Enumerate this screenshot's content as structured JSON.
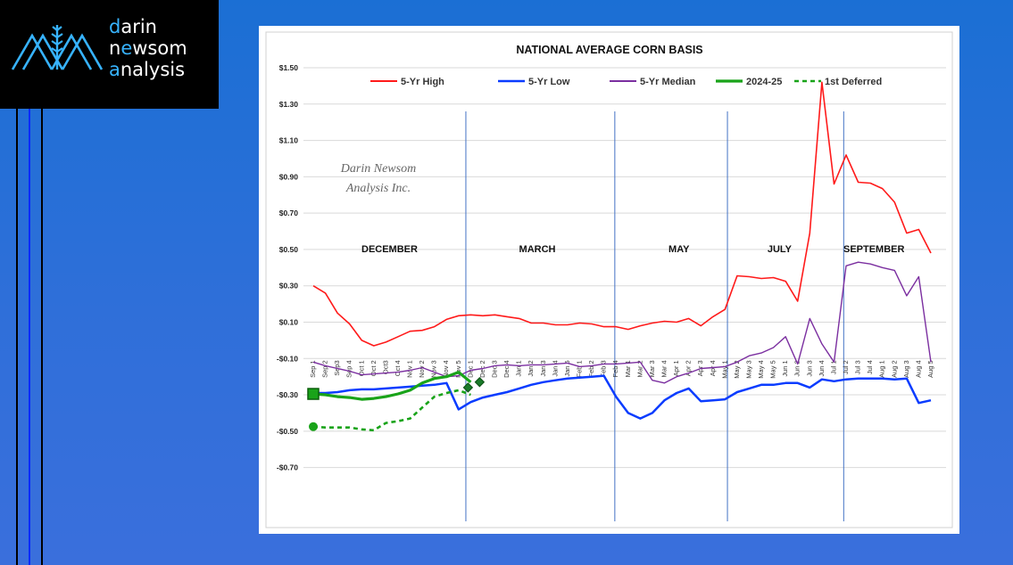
{
  "brand": {
    "line1_accent": "d",
    "line1_rest": "arin",
    "line2_pre": "n",
    "line2_accent": "e",
    "line2_mid": "w",
    "line2_rest": "som",
    "line3_accent": "a",
    "line3_rest": "nalysis",
    "accent_color": "#37b3ff"
  },
  "chart_data": {
    "type": "line",
    "title": "NATIONAL AVERAGE CORN BASIS",
    "watermark": [
      "Darin Newsom",
      "Analysis Inc."
    ],
    "ylim": [
      -0.8,
      1.5
    ],
    "yticks": [
      1.5,
      1.3,
      1.1,
      0.9,
      0.7,
      0.5,
      0.3,
      0.1,
      -0.1,
      -0.3,
      -0.5,
      -0.7
    ],
    "ytick_labels": [
      "$1.50",
      "$1.30",
      "$1.10",
      "$0.90",
      "$0.70",
      "$0.50",
      "$0.30",
      "$0.10",
      "-$0.10",
      "-$0.30",
      "-$0.50",
      "-$0.70"
    ],
    "grid": true,
    "legend_position": "top",
    "x": [
      "Sep 1",
      "Sep 2",
      "Sep3",
      "Sep 4",
      "Oct 1",
      "Oct 2",
      "Oct3",
      "Oct 4",
      "Nov 1",
      "Nov 2",
      "Nov 3",
      "Nov 4",
      "Nov 5",
      "Dec 1",
      "Dec 2",
      "Dec 3",
      "Dec 4",
      "Jan 1",
      "Jan 2",
      "Jan 3",
      "Jan 4",
      "Jan 5",
      "Feb 1",
      "Feb 2",
      "Feb 3",
      "Feb 4",
      "Mar 1",
      "Mar 2",
      "Mar 3",
      "Mar 4",
      "Apr 1",
      "Apr 2",
      "Apr 3",
      "Apr 4",
      "May 1",
      "May 2",
      "May 3",
      "May 4",
      "May 5",
      "Jun 1",
      "Jun 2",
      "Jun 3",
      "Jun 4",
      "Jul 1",
      "Jul 2",
      "Jul 3",
      "Jul 4",
      "Aug 1",
      "Aug 2",
      "Aug 3",
      "Aug 4",
      "Aug 5"
    ],
    "month_labels": [
      {
        "text": "DECEMBER",
        "at_index": 6.3
      },
      {
        "text": "MARCH",
        "at_index": 18.5
      },
      {
        "text": "MAY",
        "at_index": 30.2
      },
      {
        "text": "JULY",
        "at_index": 38.5
      },
      {
        "text": "SEPTEMBER",
        "at_index": 46.3
      }
    ],
    "contract_dividers_at_index": [
      12.6,
      24.9,
      34.2,
      43.8
    ],
    "series": [
      {
        "name": "5-Yr High",
        "color": "#ff1a1a",
        "width": 1.6,
        "dash": "",
        "values": [
          0.3,
          0.26,
          0.15,
          0.09,
          0.0,
          -0.03,
          -0.01,
          0.02,
          0.05,
          0.055,
          0.075,
          0.115,
          0.135,
          0.14,
          0.135,
          0.14,
          0.13,
          0.12,
          0.095,
          0.095,
          0.085,
          0.085,
          0.095,
          0.09,
          0.075,
          0.075,
          0.06,
          0.08,
          0.095,
          0.105,
          0.1,
          0.12,
          0.08,
          0.13,
          0.17,
          0.355,
          0.35,
          0.34,
          0.345,
          0.325,
          0.215,
          0.59,
          1.42,
          0.86,
          1.02,
          0.87,
          0.865,
          0.835,
          0.76,
          0.59,
          0.61,
          0.48
        ]
      },
      {
        "name": "5-Yr Low",
        "color": "#0a3cff",
        "width": 2.5,
        "dash": "",
        "values": [
          -0.29,
          -0.29,
          -0.285,
          -0.275,
          -0.27,
          -0.27,
          -0.265,
          -0.26,
          -0.255,
          -0.25,
          -0.245,
          -0.235,
          -0.38,
          -0.34,
          -0.315,
          -0.3,
          -0.285,
          -0.265,
          -0.245,
          -0.23,
          -0.22,
          -0.21,
          -0.205,
          -0.2,
          -0.195,
          -0.31,
          -0.4,
          -0.43,
          -0.4,
          -0.33,
          -0.29,
          -0.265,
          -0.335,
          -0.33,
          -0.325,
          -0.285,
          -0.265,
          -0.245,
          -0.245,
          -0.235,
          -0.235,
          -0.26,
          -0.215,
          -0.225,
          -0.215,
          -0.21,
          -0.21,
          -0.21,
          -0.215,
          -0.21,
          -0.345,
          -0.33
        ]
      },
      {
        "name": "5-Yr Median",
        "color": "#7b2fa0",
        "width": 1.4,
        "dash": "",
        "values": [
          -0.12,
          -0.14,
          -0.155,
          -0.17,
          -0.19,
          -0.185,
          -0.18,
          -0.175,
          -0.165,
          -0.15,
          -0.175,
          -0.2,
          -0.195,
          -0.165,
          -0.155,
          -0.14,
          -0.135,
          -0.14,
          -0.135,
          -0.135,
          -0.13,
          -0.125,
          -0.145,
          -0.14,
          -0.13,
          -0.13,
          -0.125,
          -0.12,
          -0.22,
          -0.235,
          -0.2,
          -0.18,
          -0.155,
          -0.15,
          -0.145,
          -0.12,
          -0.085,
          -0.07,
          -0.04,
          0.02,
          -0.13,
          0.12,
          -0.02,
          -0.12,
          0.41,
          0.43,
          0.42,
          0.4,
          0.385,
          0.245,
          0.35,
          -0.12
        ]
      },
      {
        "name": "2024-25",
        "color": "#19a319",
        "width": 3.2,
        "dash": "",
        "values": [
          -0.295,
          -0.3,
          -0.31,
          -0.315,
          -0.325,
          -0.32,
          -0.31,
          -0.295,
          -0.275,
          -0.235,
          -0.21,
          -0.2,
          -0.175,
          -0.23,
          null,
          null,
          null,
          null,
          null,
          null,
          null,
          null,
          null,
          null,
          null,
          null,
          null,
          null,
          null,
          null,
          null,
          null,
          null,
          null,
          null,
          null,
          null,
          null,
          null,
          null,
          null,
          null,
          null,
          null,
          null,
          null,
          null,
          null,
          null,
          null,
          null,
          null
        ]
      },
      {
        "name": "1st Deferred",
        "color": "#19a319",
        "width": 2.6,
        "dash": "5,4",
        "values": [
          -0.475,
          -0.48,
          -0.48,
          -0.48,
          -0.49,
          -0.495,
          -0.455,
          -0.445,
          -0.43,
          -0.37,
          -0.31,
          -0.29,
          -0.275,
          -0.3,
          null,
          null,
          null,
          null,
          null,
          null,
          null,
          null,
          null,
          null,
          null,
          null,
          null,
          null,
          null,
          null,
          null,
          null,
          null,
          null,
          null,
          null,
          null,
          null,
          null,
          null,
          null,
          null,
          null,
          null,
          null,
          null,
          null,
          null,
          null,
          null,
          null,
          null
        ]
      }
    ]
  }
}
